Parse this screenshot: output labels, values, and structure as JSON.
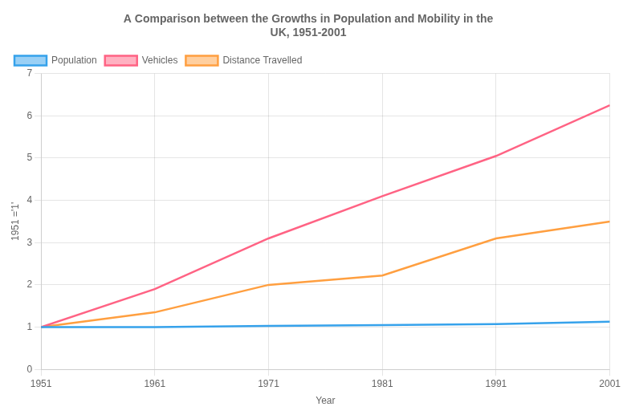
{
  "chart_data": {
    "type": "line",
    "title": "A Comparison between the Growths in Population and Mobility in the\nUK, 1951-2001",
    "x_label": "Year",
    "y_label": "1951 ='1'",
    "x": [
      1951,
      1961,
      1971,
      1981,
      1991,
      2001
    ],
    "series": [
      {
        "name": "Population",
        "values": [
          1.0,
          1.0,
          1.03,
          1.05,
          1.07,
          1.13
        ]
      },
      {
        "name": "Vehicles",
        "values": [
          1.0,
          1.9,
          3.1,
          4.1,
          5.05,
          6.25
        ]
      },
      {
        "name": "Distance Travelled",
        "values": [
          1.0,
          1.35,
          2.0,
          2.22,
          3.1,
          3.5
        ]
      }
    ],
    "xlim": [
      1951,
      2001
    ],
    "xticks": [
      1951,
      1961,
      1971,
      1981,
      1991,
      2001
    ],
    "ylim": [
      0,
      7
    ],
    "yticks": [
      0,
      1,
      2,
      3,
      4,
      5,
      6,
      7
    ],
    "grid": true,
    "legend": "upper left"
  }
}
